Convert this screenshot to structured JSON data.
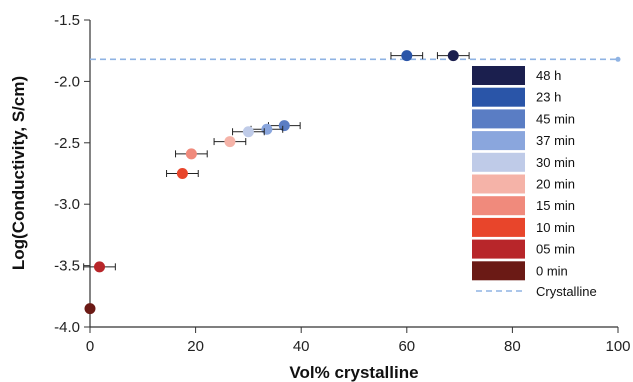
{
  "chart_data": {
    "type": "scatter",
    "xlabel": "Vol% crystalline",
    "ylabel": "Log(Conductivity, S/cm)",
    "xlim": [
      0,
      100
    ],
    "ylim": [
      -4.0,
      -1.5
    ],
    "xticks": [
      "0",
      "20",
      "40",
      "60",
      "80",
      "100"
    ],
    "yticks": [
      "-1.5",
      "-2.0",
      "-2.5",
      "-3.0",
      "-3.5",
      "-4.0"
    ],
    "grid": false,
    "legend_position": "right",
    "series": [
      {
        "name": "48 h",
        "color": "#1b1f4e",
        "x": 68.8,
        "y": -1.79,
        "xerr": 3.0
      },
      {
        "name": "23 h",
        "color": "#2a55a8",
        "x": 60.0,
        "y": -1.79,
        "xerr": 3.0
      },
      {
        "name": "45 min",
        "color": "#5a7dc4",
        "x": 36.8,
        "y": -2.36,
        "xerr": 3.0
      },
      {
        "name": "37 min",
        "color": "#8aa6dd",
        "x": 33.5,
        "y": -2.39,
        "xerr": 3.0
      },
      {
        "name": "30 min",
        "color": "#bfcbe8",
        "x": 30.0,
        "y": -2.41,
        "xerr": 3.0
      },
      {
        "name": "20 min",
        "color": "#f5b3a8",
        "x": 26.5,
        "y": -2.49,
        "xerr": 3.0
      },
      {
        "name": "15 min",
        "color": "#f08a7c",
        "x": 19.2,
        "y": -2.59,
        "xerr": 3.0
      },
      {
        "name": "10 min",
        "color": "#e8452b",
        "x": 17.5,
        "y": -2.75,
        "xerr": 3.0
      },
      {
        "name": "05 min",
        "color": "#b8262a",
        "x": 1.8,
        "y": -3.51,
        "xerr": 3.0
      },
      {
        "name": "0 min",
        "color": "#6b1a15",
        "x": 0.0,
        "y": -3.85,
        "xerr": 0
      }
    ],
    "reference_line": {
      "name": "Crystalline",
      "y": -1.82,
      "color": "#8fb3e3"
    }
  }
}
